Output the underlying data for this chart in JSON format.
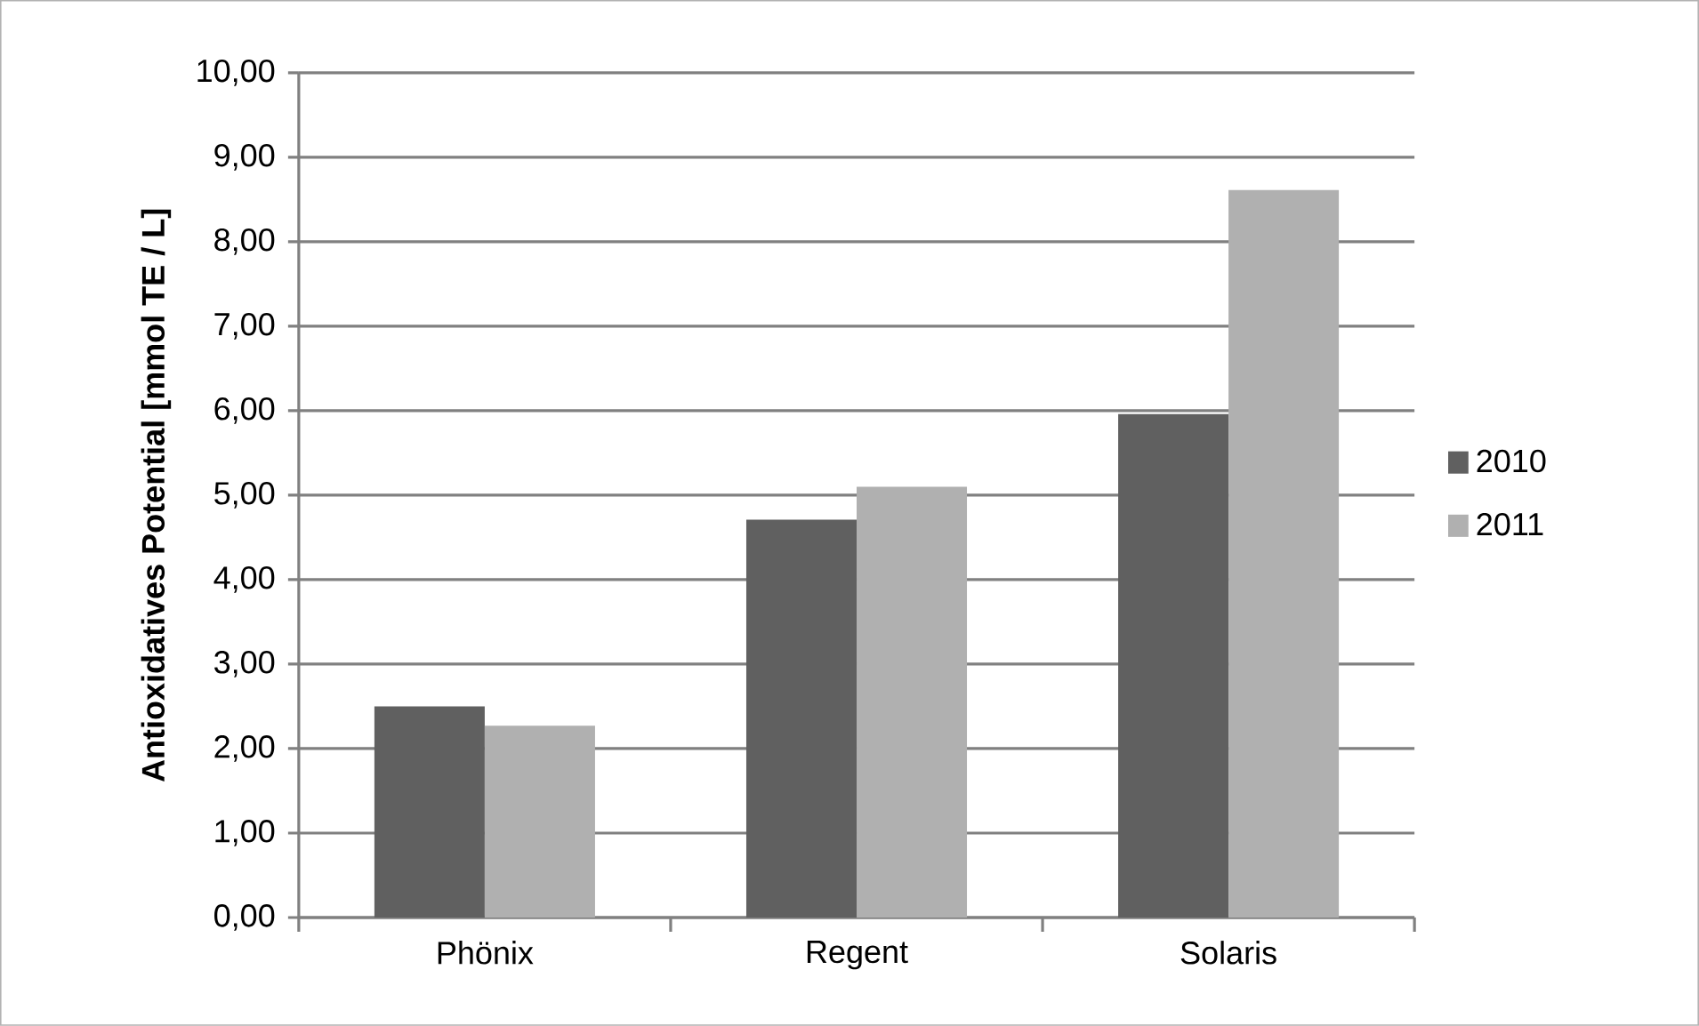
{
  "chart_data": {
    "type": "bar",
    "ylabel": "Antioxidatives Potential [mmol TE / L]",
    "categories": [
      "Phönix",
      "Regent",
      "Solaris"
    ],
    "series": [
      {
        "name": "2010",
        "color": "#606060",
        "values": [
          2.5,
          4.71,
          5.96
        ]
      },
      {
        "name": "2011",
        "color": "#b0b0b0",
        "values": [
          2.27,
          5.1,
          8.61
        ]
      }
    ],
    "ylim": [
      0,
      10
    ],
    "yticks": [
      {
        "value": 0,
        "label": "0,00"
      },
      {
        "value": 1,
        "label": "1,00"
      },
      {
        "value": 2,
        "label": "2,00"
      },
      {
        "value": 3,
        "label": "3,00"
      },
      {
        "value": 4,
        "label": "4,00"
      },
      {
        "value": 5,
        "label": "5,00"
      },
      {
        "value": 6,
        "label": "6,00"
      },
      {
        "value": 7,
        "label": "7,00"
      },
      {
        "value": 8,
        "label": "8,00"
      },
      {
        "value": 9,
        "label": "9,00"
      },
      {
        "value": 10,
        "label": "10,00"
      }
    ],
    "grid": "y",
    "legend": "right"
  }
}
